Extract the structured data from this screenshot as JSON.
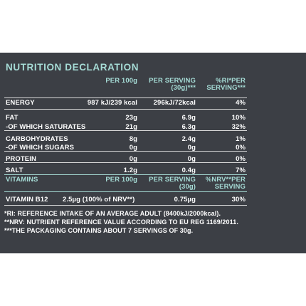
{
  "header": {
    "title": "NUTRITION DECLARATION"
  },
  "table": {
    "columns": [
      [
        "PER 100g"
      ],
      [
        "PER SERVING",
        "(30g)***"
      ],
      [
        "%RI*PER",
        "SERVING***"
      ]
    ],
    "rows": [
      [
        "ENERGY",
        "987 kJ/239 kcal",
        "296kJ/72kcal",
        "4%"
      ],
      [
        "FAT",
        "23g",
        "6.9g",
        "10%"
      ],
      [
        "-OF WHICH SATURATES",
        "21g",
        "6.3g",
        "32%"
      ],
      [
        "CARBOHYDRATES",
        "8g",
        "2.4g",
        "1%"
      ],
      [
        "-OF WHICH SUGARS",
        "0g",
        "0g",
        "0%"
      ],
      [
        "PROTEIN",
        "0g",
        "0g",
        "0%"
      ],
      [
        "SALT",
        "1.2g",
        "0.4g",
        "7%"
      ]
    ]
  },
  "vitamins": {
    "columns": [
      [
        "VITAMINS"
      ],
      [
        "PER 100g"
      ],
      [
        "PER SERVING",
        "(30g)"
      ],
      [
        "%NRV**PER",
        "SERVING"
      ]
    ],
    "rows": [
      [
        "VITAMIN B12",
        "2.5µg (100% of NRV**)",
        "0.75µg",
        "30%"
      ]
    ]
  },
  "footnotes": [
    "*RI: REFERENCE INTAKE OF AN AVERAGE ADULT (8400kJ/2000kcal).",
    "**NRV: NUTRIENT REFERENCE VALUE ACCORDING TO EU REG 1169/2011.",
    "***THE PACKAGING CONTAINS ABOUT 7 SERVINGS OF 30g."
  ]
}
